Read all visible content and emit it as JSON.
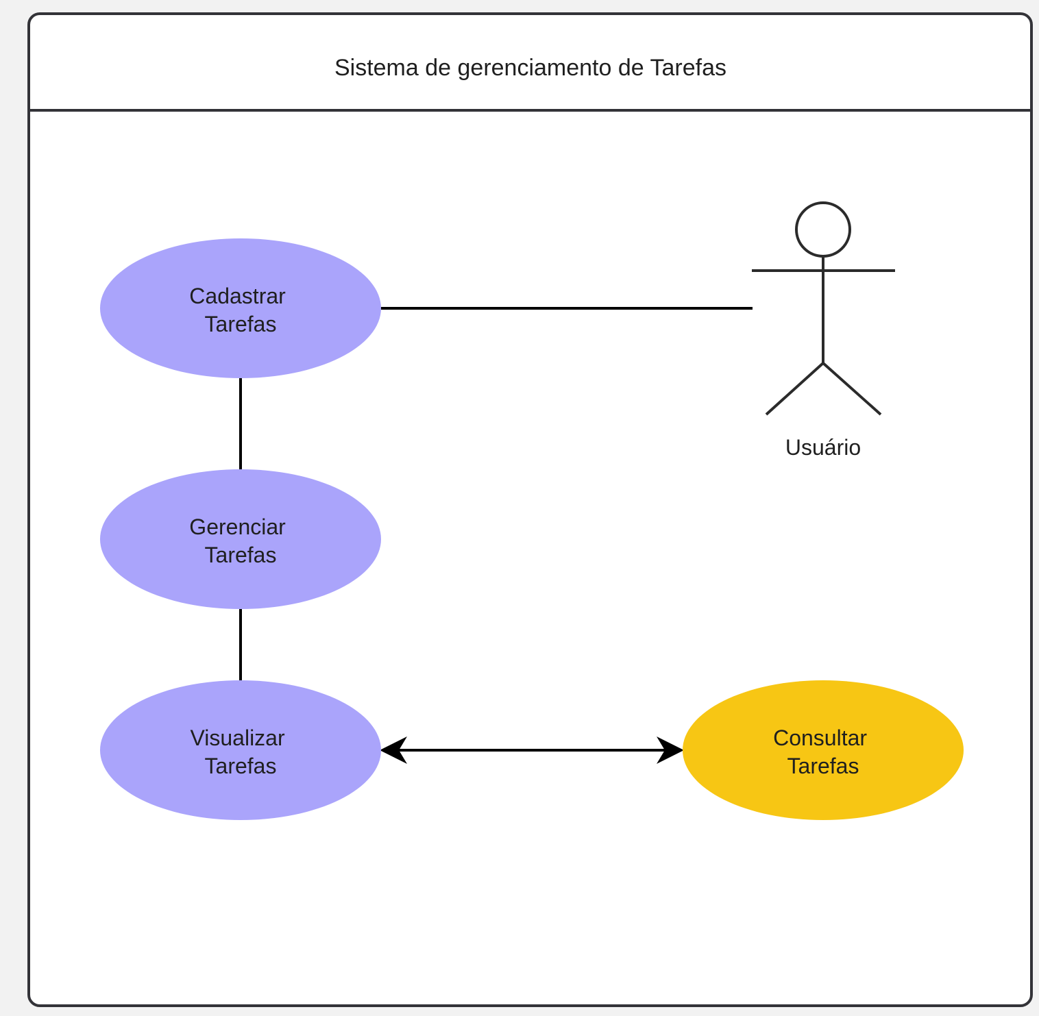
{
  "frame": {
    "title": "Sistema de gerenciamento de Tarefas"
  },
  "colors": {
    "background": "#f2f2f2",
    "frame_fill": "#ffffff",
    "frame_stroke": "#333338",
    "use_case_purple": "#aaa4fb",
    "use_case_yellow": "#f7c614",
    "line": "#000000"
  },
  "actor": {
    "name": "Usuário"
  },
  "use_cases": {
    "cadastrar": [
      "Cadastrar",
      "Tarefas"
    ],
    "gerenciar": [
      "Gerenciar",
      "Tarefas"
    ],
    "visualizar": [
      "Visualizar",
      "Tarefas"
    ],
    "consultar": [
      "Consultar",
      "Tarefas"
    ]
  }
}
